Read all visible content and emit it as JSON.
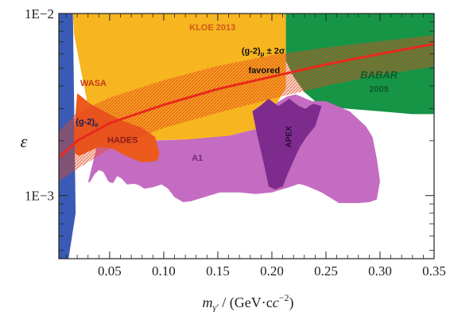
{
  "chart_data": {
    "type": "area",
    "title": "",
    "xlabel": "m",
    "xlabel_subscript": "γ′",
    "xlabel_units": " / (GeV·c",
    "xlabel_exp": "−2",
    "xlabel_close": ")",
    "ylabel": "ε",
    "xlim": [
      0.003,
      0.35
    ],
    "ylim": [
      0.00045,
      0.01
    ],
    "yscale": "log",
    "x_ticks": [
      {
        "value": 0.05,
        "label": "0.05"
      },
      {
        "value": 0.1,
        "label": "0.10"
      },
      {
        "value": 0.15,
        "label": "0.15"
      },
      {
        "value": 0.2,
        "label": "0.20"
      },
      {
        "value": 0.25,
        "label": "0.25"
      },
      {
        "value": 0.3,
        "label": "0.30"
      },
      {
        "value": 0.35,
        "label": "0.35"
      }
    ],
    "y_ticks": [
      {
        "value": 0.01,
        "label": "1E−2"
      },
      {
        "value": 0.001,
        "label": "1E−3"
      }
    ],
    "colors": {
      "ge": "#3a5bb5",
      "kloe": "#f7b51f",
      "babar": "#169546",
      "a1": "#c46cc1",
      "apex": "#7d2c8e",
      "band": "#e8561d",
      "central": "#e8291c",
      "wasa_hades": "#ec5a1e"
    },
    "regions": [
      {
        "name": "(g-2)e",
        "color": "#3a5bb5",
        "boundary": [
          [
            0.003,
            0.01
          ],
          [
            0.016,
            0.01
          ],
          [
            0.0185,
            0.0008
          ],
          [
            0.012,
            0.00045
          ],
          [
            0.003,
            0.00045
          ]
        ]
      },
      {
        "name": "KLOE 2013",
        "color": "#f7b51f",
        "boundary": [
          [
            0.016,
            0.01
          ],
          [
            0.213,
            0.01
          ],
          [
            0.213,
            0.0039
          ],
          [
            0.205,
            0.00325
          ],
          [
            0.19,
            0.00235
          ],
          [
            0.16,
            0.00213
          ],
          [
            0.14,
            0.00203
          ],
          [
            0.12,
            0.00203
          ],
          [
            0.1,
            0.00202
          ],
          [
            0.08,
            0.00201
          ],
          [
            0.065,
            0.00208
          ],
          [
            0.05,
            0.00215
          ],
          [
            0.04,
            0.00245
          ],
          [
            0.03,
            0.0031
          ],
          [
            0.022,
            0.0054
          ],
          [
            0.017,
            0.0078
          ]
        ]
      },
      {
        "name": "BaBar 2009",
        "color": "#169546",
        "boundary": [
          [
            0.213,
            0.01
          ],
          [
            0.35,
            0.01
          ],
          [
            0.35,
            0.0028
          ],
          [
            0.33,
            0.0028
          ],
          [
            0.3,
            0.0029
          ],
          [
            0.27,
            0.003
          ],
          [
            0.25,
            0.0031
          ],
          [
            0.24,
            0.0033
          ],
          [
            0.23,
            0.0037
          ],
          [
            0.22,
            0.0045
          ],
          [
            0.213,
            0.0055
          ]
        ]
      },
      {
        "name": "A1",
        "color": "#c46cc1",
        "boundary": [
          [
            0.04,
            0.00205
          ],
          [
            0.08,
            0.002
          ],
          [
            0.12,
            0.00203
          ],
          [
            0.16,
            0.00213
          ],
          [
            0.19,
            0.00235
          ],
          [
            0.205,
            0.00325
          ],
          [
            0.214,
            0.0035
          ],
          [
            0.222,
            0.0036
          ],
          [
            0.237,
            0.0033
          ],
          [
            0.25,
            0.0033
          ],
          [
            0.272,
            0.0029
          ],
          [
            0.287,
            0.0024
          ],
          [
            0.293,
            0.0021
          ],
          [
            0.297,
            0.0016
          ],
          [
            0.3,
            0.0012
          ],
          [
            0.297,
            0.00095
          ],
          [
            0.29,
            0.00092
          ],
          [
            0.28,
            0.00091
          ],
          [
            0.262,
            0.00091
          ],
          [
            0.246,
            0.00104
          ],
          [
            0.232,
            0.00113
          ],
          [
            0.225,
            0.00116
          ],
          [
            0.218,
            0.00112
          ],
          [
            0.2,
            0.00104
          ],
          [
            0.185,
            0.00102
          ],
          [
            0.17,
            0.00104
          ],
          [
            0.152,
            0.00104
          ],
          [
            0.135,
            0.00097
          ],
          [
            0.125,
            0.00093
          ],
          [
            0.118,
            0.00092
          ],
          [
            0.11,
            0.00098
          ],
          [
            0.104,
            0.00109
          ],
          [
            0.098,
            0.00115
          ],
          [
            0.09,
            0.00111
          ],
          [
            0.082,
            0.00109
          ],
          [
            0.077,
            0.00114
          ],
          [
            0.073,
            0.00116
          ],
          [
            0.066,
            0.00115
          ],
          [
            0.061,
            0.00124
          ],
          [
            0.057,
            0.00128
          ],
          [
            0.053,
            0.00117
          ],
          [
            0.049,
            0.00119
          ],
          [
            0.044,
            0.00135
          ],
          [
            0.04,
            0.00138
          ],
          [
            0.036,
            0.00131
          ],
          [
            0.032,
            0.00119
          ],
          [
            0.03,
            0.00118
          ]
        ]
      },
      {
        "name": "APEX",
        "color": "#7d2c8e",
        "boundary": [
          [
            0.182,
            0.0029
          ],
          [
            0.186,
            0.0022
          ],
          [
            0.192,
            0.00155
          ],
          [
            0.197,
            0.00112
          ],
          [
            0.203,
            0.00108
          ],
          [
            0.21,
            0.00112
          ],
          [
            0.215,
            0.00133
          ],
          [
            0.222,
            0.00165
          ],
          [
            0.226,
            0.00185
          ],
          [
            0.232,
            0.0021
          ],
          [
            0.24,
            0.0024
          ],
          [
            0.246,
            0.0031
          ],
          [
            0.238,
            0.0032
          ],
          [
            0.231,
            0.003
          ],
          [
            0.225,
            0.0031
          ],
          [
            0.216,
            0.0034
          ],
          [
            0.206,
            0.0031
          ],
          [
            0.197,
            0.0034
          ],
          [
            0.189,
            0.0031
          ]
        ]
      },
      {
        "name": "WASA / HADES",
        "color": "#ec5a1e",
        "boundary": [
          [
            0.02,
            0.00365
          ],
          [
            0.032,
            0.0032
          ],
          [
            0.045,
            0.0029
          ],
          [
            0.06,
            0.0026
          ],
          [
            0.08,
            0.00235
          ],
          [
            0.092,
            0.0021
          ],
          [
            0.096,
            0.0017
          ],
          [
            0.094,
            0.00155
          ],
          [
            0.08,
            0.00152
          ],
          [
            0.065,
            0.00165
          ],
          [
            0.052,
            0.00182
          ],
          [
            0.04,
            0.00185
          ],
          [
            0.03,
            0.00174
          ],
          [
            0.022,
            0.00165
          ],
          [
            0.018,
            0.0017
          ],
          [
            0.017,
            0.0022
          ]
        ]
      }
    ],
    "favored_band": {
      "name": "(g-2)μ ± 2σ favored",
      "upper": [
        [
          0.003,
          0.00225
        ],
        [
          0.02,
          0.00285
        ],
        [
          0.05,
          0.00345
        ],
        [
          0.1,
          0.0043
        ],
        [
          0.15,
          0.00515
        ],
        [
          0.2,
          0.0059
        ],
        [
          0.25,
          0.0065
        ],
        [
          0.3,
          0.00705
        ],
        [
          0.35,
          0.0076
        ]
      ],
      "lower": [
        [
          0.003,
          0.0012
        ],
        [
          0.02,
          0.0014
        ],
        [
          0.05,
          0.0018
        ],
        [
          0.1,
          0.00235
        ],
        [
          0.15,
          0.00285
        ],
        [
          0.2,
          0.0034
        ],
        [
          0.25,
          0.004
        ],
        [
          0.3,
          0.0046
        ],
        [
          0.35,
          0.0051
        ]
      ]
    },
    "central_line": [
      [
        0.003,
        0.00162
      ],
      [
        0.02,
        0.002
      ],
      [
        0.05,
        0.0025
      ],
      [
        0.1,
        0.00315
      ],
      [
        0.15,
        0.00385
      ],
      [
        0.2,
        0.0045
      ],
      [
        0.25,
        0.00525
      ],
      [
        0.3,
        0.006
      ],
      [
        0.35,
        0.0068
      ]
    ],
    "annotations": [
      {
        "name": "kloe-label",
        "text": "KLOE 2013",
        "x": 0.145,
        "y": 0.0081,
        "color": "#d05a1c",
        "size": 11
      },
      {
        "name": "g2mu-label",
        "text": "(g-2)",
        "sub": "μ",
        "after": " ± 2σ",
        "x": 0.192,
        "y": 0.006,
        "color": "#111111",
        "size": 11
      },
      {
        "name": "favored-label",
        "text": "favored",
        "x": 0.193,
        "y": 0.0047,
        "color": "#111111",
        "size": 11
      },
      {
        "name": "wasa-label",
        "text": "WASA",
        "x": 0.035,
        "y": 0.004,
        "color": "#c23a1d",
        "size": 11
      },
      {
        "name": "g2e-label",
        "text": "(g-2)",
        "sub": "e",
        "x": 0.029,
        "y": 0.00245,
        "color": "#0d1f5a",
        "size": 11
      },
      {
        "name": "hades-label",
        "text": "HADES",
        "x": 0.062,
        "y": 0.00195,
        "color": "#8a1e15",
        "size": 11
      },
      {
        "name": "a1-label",
        "text": "A1",
        "x": 0.131,
        "y": 0.00155,
        "color": "#7a2886",
        "size": 11
      },
      {
        "name": "babar-label",
        "text": "BABAR",
        "x": 0.299,
        "y": 0.0044,
        "color": "#0f5a2a",
        "size": 13,
        "italic": true
      },
      {
        "name": "babar-year-label",
        "text": "2009",
        "x": 0.299,
        "y": 0.0037,
        "color": "#0f5a2a",
        "size": 11
      },
      {
        "name": "apex-label",
        "text": "APEX",
        "x": 0.218,
        "y": 0.0021,
        "color": "#2a0d35",
        "size": 10,
        "rotate": -90
      }
    ]
  }
}
